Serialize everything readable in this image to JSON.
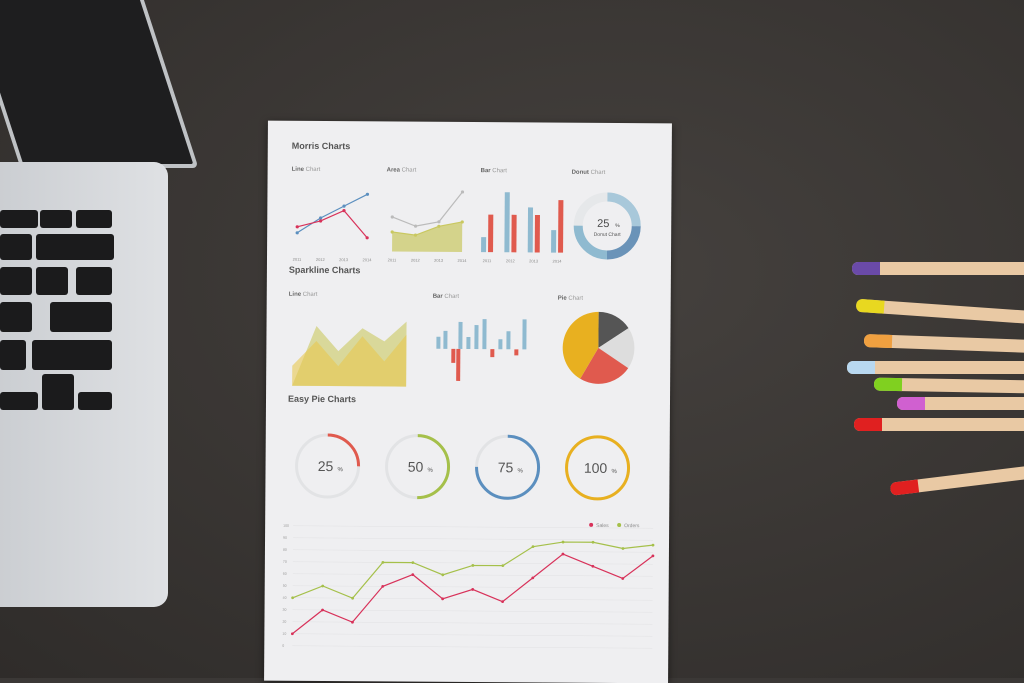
{
  "paper": {
    "morris_title": "Morris Charts",
    "line_chart": {
      "bold": "Line",
      "rest": "Chart"
    },
    "area_chart": {
      "bold": "Area",
      "rest": "Chart"
    },
    "bar_chart": {
      "bold": "Bar",
      "rest": "Chart"
    },
    "donut_chart": {
      "bold": "Donut",
      "rest": "Chart",
      "value": "25",
      "unit": "%",
      "label": "Donut Chart"
    },
    "sparkline_title": "Sparkline Charts",
    "spark_line": {
      "bold": "Line",
      "rest": "Chart"
    },
    "spark_bar": {
      "bold": "Bar",
      "rest": "Chart"
    },
    "spark_pie": {
      "bold": "Pie",
      "rest": "Chart"
    },
    "easypie_title": "Easy Pie Charts",
    "easy_pies": [
      {
        "value": "25",
        "fraction": 0.25,
        "color": "#e05a4e"
      },
      {
        "value": "50",
        "fraction": 0.5,
        "color": "#a5c04a"
      },
      {
        "value": "75",
        "fraction": 0.75,
        "color": "#5b8fbf"
      },
      {
        "value": "100",
        "fraction": 1.0,
        "color": "#e8b020"
      }
    ],
    "pct": "%"
  },
  "chart_data": [
    {
      "type": "line",
      "title": "Line Chart",
      "categories": [
        "2011",
        "2012",
        "2013",
        "2014"
      ],
      "ylim": [
        0,
        40
      ],
      "series": [
        {
          "values": [
            12,
            22,
            30,
            38
          ],
          "color": "#5b8fbf"
        },
        {
          "values": [
            16,
            20,
            27,
            9
          ],
          "color": "#d8325a"
        }
      ]
    },
    {
      "type": "area",
      "title": "Area Chart",
      "categories": [
        "2011",
        "2012",
        "2013",
        "2014"
      ],
      "ylim": [
        0,
        40
      ],
      "series": [
        {
          "values": [
            23,
            17,
            20,
            40
          ],
          "color": "#bbbbbb"
        },
        {
          "values": [
            13,
            11,
            17,
            20
          ],
          "color": "#c9c860"
        }
      ]
    },
    {
      "type": "bar",
      "title": "Bar Chart",
      "categories": [
        "2011",
        "2012",
        "2013",
        "2014"
      ],
      "ylim": [
        0,
        40
      ],
      "series": [
        {
          "values": [
            10,
            40,
            30,
            15
          ],
          "color": "#8fbad0"
        },
        {
          "values": [
            25,
            25,
            25,
            35
          ],
          "color": "#e05a4e"
        }
      ]
    },
    {
      "type": "line",
      "legend_position": "top-right",
      "ylim": [
        0,
        100
      ],
      "yticks": [
        0,
        10,
        20,
        30,
        40,
        50,
        60,
        70,
        80,
        90,
        100
      ],
      "series": [
        {
          "name": "Sales",
          "color": "#d8325a",
          "values": [
            10,
            30,
            20,
            50,
            60,
            40,
            48,
            38,
            58,
            78,
            68,
            58,
            77
          ]
        },
        {
          "name": "Orders",
          "color": "#a5c04a",
          "values": [
            40,
            50,
            40,
            70,
            70,
            60,
            68,
            68,
            84,
            88,
            88,
            83,
            86
          ]
        }
      ]
    }
  ]
}
